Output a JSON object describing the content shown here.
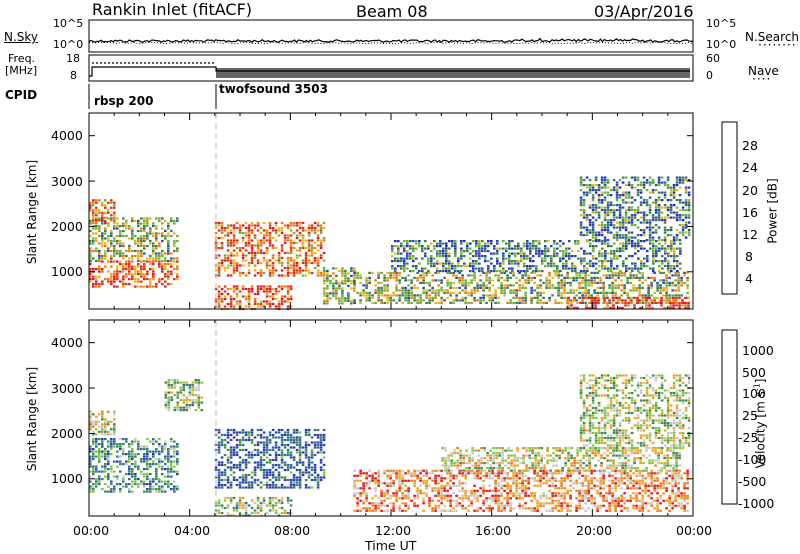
{
  "header": {
    "station": "Rankin Inlet (fitACF)",
    "beam": "Beam 08",
    "date": "03/Apr/2016"
  },
  "sky_panel": {
    "left_label": "N.Sky",
    "right_label": "N.Search",
    "left_ticks": [
      "10^5",
      "10^0"
    ],
    "right_ticks": [
      "10^5",
      "10^0"
    ]
  },
  "freq_panel": {
    "left_label_1": "Freq.",
    "left_label_2": "[MHz]",
    "right_label": "Nave",
    "left_ticks": [
      "18",
      "8"
    ],
    "right_ticks": [
      "60",
      "0"
    ]
  },
  "cpid": {
    "label": "CPID",
    "programs": [
      {
        "name": "rbsp 200",
        "start_hour": 0
      },
      {
        "name": "twofsound 3503",
        "start_hour": 5
      }
    ]
  },
  "time_axis": {
    "title": "Time UT",
    "ticks": [
      "00:00",
      "04:00",
      "08:00",
      "12:00",
      "16:00",
      "20:00",
      "00:00"
    ]
  },
  "chart_data": [
    {
      "type": "heatmap",
      "title": "",
      "xlabel": "Time UT",
      "ylabel": "Slant Range [km]",
      "xlim": [
        0,
        24
      ],
      "ylim": [
        180,
        4500
      ],
      "yticks": [
        "1000",
        "2000",
        "3000",
        "4000"
      ],
      "colorbar": {
        "label": "Power [dB]",
        "ticks": [
          "4",
          "8",
          "12",
          "16",
          "20",
          "24",
          "28"
        ],
        "colors": [
          "#1e2ad8",
          "#2b4fa0",
          "#3c7e50",
          "#66b33a",
          "#e6b423",
          "#ee7a12",
          "#d8341c",
          "#e6141a"
        ]
      },
      "echo_regions": [
        {
          "t": [
            0.0,
            3.5
          ],
          "range": [
            650,
            1250
          ],
          "level": 0.75
        },
        {
          "t": [
            0.0,
            3.5
          ],
          "range": [
            1250,
            2200
          ],
          "level": 0.45
        },
        {
          "t": [
            0.0,
            1.0
          ],
          "range": [
            2100,
            2600
          ],
          "level": 0.7
        },
        {
          "t": [
            5.0,
            9.3
          ],
          "range": [
            900,
            2100
          ],
          "level": 0.7
        },
        {
          "t": [
            5.0,
            8.0
          ],
          "range": [
            200,
            700
          ],
          "level": 0.75
        },
        {
          "t": [
            9.3,
            10.5
          ],
          "range": [
            300,
            1100
          ],
          "level": 0.45
        },
        {
          "t": [
            10.5,
            23.8
          ],
          "range": [
            300,
            1000
          ],
          "level": 0.45
        },
        {
          "t": [
            12.0,
            23.5
          ],
          "range": [
            1000,
            1700
          ],
          "level": 0.3
        },
        {
          "t": [
            19.5,
            23.8
          ],
          "range": [
            1700,
            3100
          ],
          "level": 0.3
        },
        {
          "t": [
            19.0,
            23.8
          ],
          "range": [
            180,
            450
          ],
          "level": 0.8
        }
      ]
    },
    {
      "type": "heatmap",
      "title": "",
      "xlabel": "Time UT",
      "ylabel": "Slant Range [km]",
      "xlim": [
        0,
        24
      ],
      "ylim": [
        180,
        4500
      ],
      "yticks": [
        "1000",
        "2000",
        "3000",
        "4000"
      ],
      "colorbar": {
        "label": "Velocity [m s^-1]",
        "ticks": [
          "1000",
          "500",
          "100",
          "25",
          "-25",
          "-100",
          "-500",
          "-1000"
        ],
        "colors": [
          "#2a3ab8",
          "#2f6aa0",
          "#3c8a50",
          "#7ec642",
          "#c8c8c8",
          "#f3a122",
          "#ee7a12",
          "#e6141a"
        ]
      },
      "echo_regions": [
        {
          "t": [
            0.0,
            3.5
          ],
          "range": [
            700,
            1900
          ],
          "level": 0.3
        },
        {
          "t": [
            0.0,
            1.0
          ],
          "range": [
            2000,
            2500
          ],
          "level": 0.55
        },
        {
          "t": [
            5.0,
            9.3
          ],
          "range": [
            800,
            2100
          ],
          "level": 0.15
        },
        {
          "t": [
            5.0,
            8.0
          ],
          "range": [
            200,
            600
          ],
          "level": 0.45
        },
        {
          "t": [
            10.5,
            23.8
          ],
          "range": [
            300,
            1200
          ],
          "level": 0.75
        },
        {
          "t": [
            14.0,
            23.5
          ],
          "range": [
            1200,
            1700
          ],
          "level": 0.55
        },
        {
          "t": [
            19.5,
            23.8
          ],
          "range": [
            1700,
            3300
          ],
          "level": 0.5
        },
        {
          "t": [
            3.0,
            4.5
          ],
          "range": [
            2500,
            3200
          ],
          "level": 0.45
        }
      ]
    }
  ]
}
